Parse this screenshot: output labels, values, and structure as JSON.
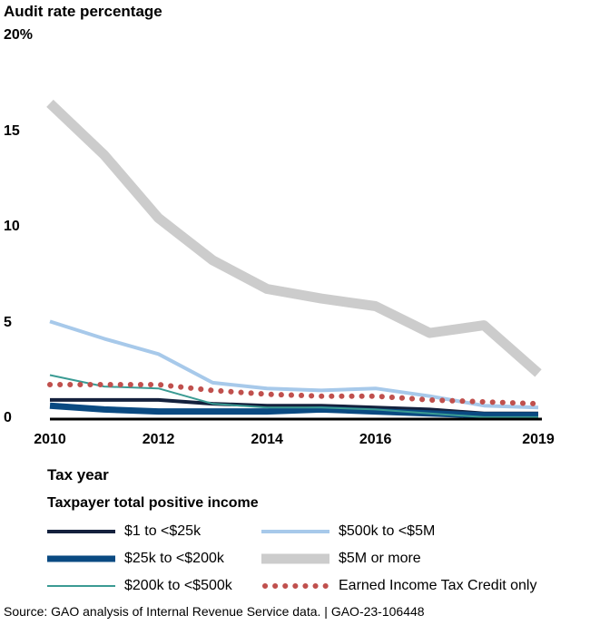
{
  "chart_data": {
    "type": "line",
    "title": "",
    "ylabel": "Audit rate percentage",
    "xlabel": "Tax year",
    "x": [
      2010,
      2011,
      2012,
      2013,
      2014,
      2015,
      2016,
      2017,
      2018,
      2019
    ],
    "x_tick_labels": [
      "2010",
      "2012",
      "2014",
      "2016",
      "2019"
    ],
    "x_tick_values": [
      2010,
      2012,
      2014,
      2016,
      2019
    ],
    "ylim": [
      0,
      20
    ],
    "y_tick_labels": [
      "0",
      "5",
      "10",
      "15",
      "20%"
    ],
    "y_tick_values": [
      0,
      5,
      10,
      15,
      20
    ],
    "grid": false,
    "legend_title": "Taxpayer total positive income",
    "legend_placement": "bottom",
    "series": [
      {
        "name": "$1 to <$25k",
        "color": "#14213d",
        "style": "solid-medium",
        "values": [
          1.0,
          1.0,
          1.0,
          0.8,
          0.7,
          0.7,
          0.6,
          0.5,
          0.3,
          0.3
        ]
      },
      {
        "name": "$25k to <$200k",
        "color": "#0a4a82",
        "style": "solid-thick",
        "values": [
          0.7,
          0.5,
          0.4,
          0.4,
          0.4,
          0.5,
          0.4,
          0.3,
          0.2,
          0.2
        ]
      },
      {
        "name": "$200k to <$500k",
        "color": "#3a9b93",
        "style": "solid-thin",
        "values": [
          2.3,
          1.7,
          1.6,
          0.8,
          0.6,
          0.6,
          0.5,
          0.3,
          0.1,
          0.1
        ]
      },
      {
        "name": "$500k to <$5M",
        "color": "#a7c9ea",
        "style": "solid-medium",
        "values": [
          5.1,
          4.2,
          3.4,
          1.9,
          1.6,
          1.5,
          1.6,
          1.2,
          0.7,
          0.6
        ]
      },
      {
        "name": "$5M or more",
        "color": "#cccccc",
        "style": "solid-heavy",
        "values": [
          16.5,
          13.8,
          10.5,
          8.3,
          6.8,
          6.3,
          5.9,
          4.5,
          4.9,
          2.4
        ]
      },
      {
        "name": "Earned Income Tax Credit only",
        "color": "#c0504d",
        "style": "dotted",
        "values": [
          1.8,
          1.8,
          1.8,
          1.5,
          1.3,
          1.2,
          1.2,
          1.0,
          0.9,
          0.8
        ]
      }
    ]
  },
  "source": "Source: GAO analysis of Internal Revenue Service data.  |  GAO-23-106448"
}
